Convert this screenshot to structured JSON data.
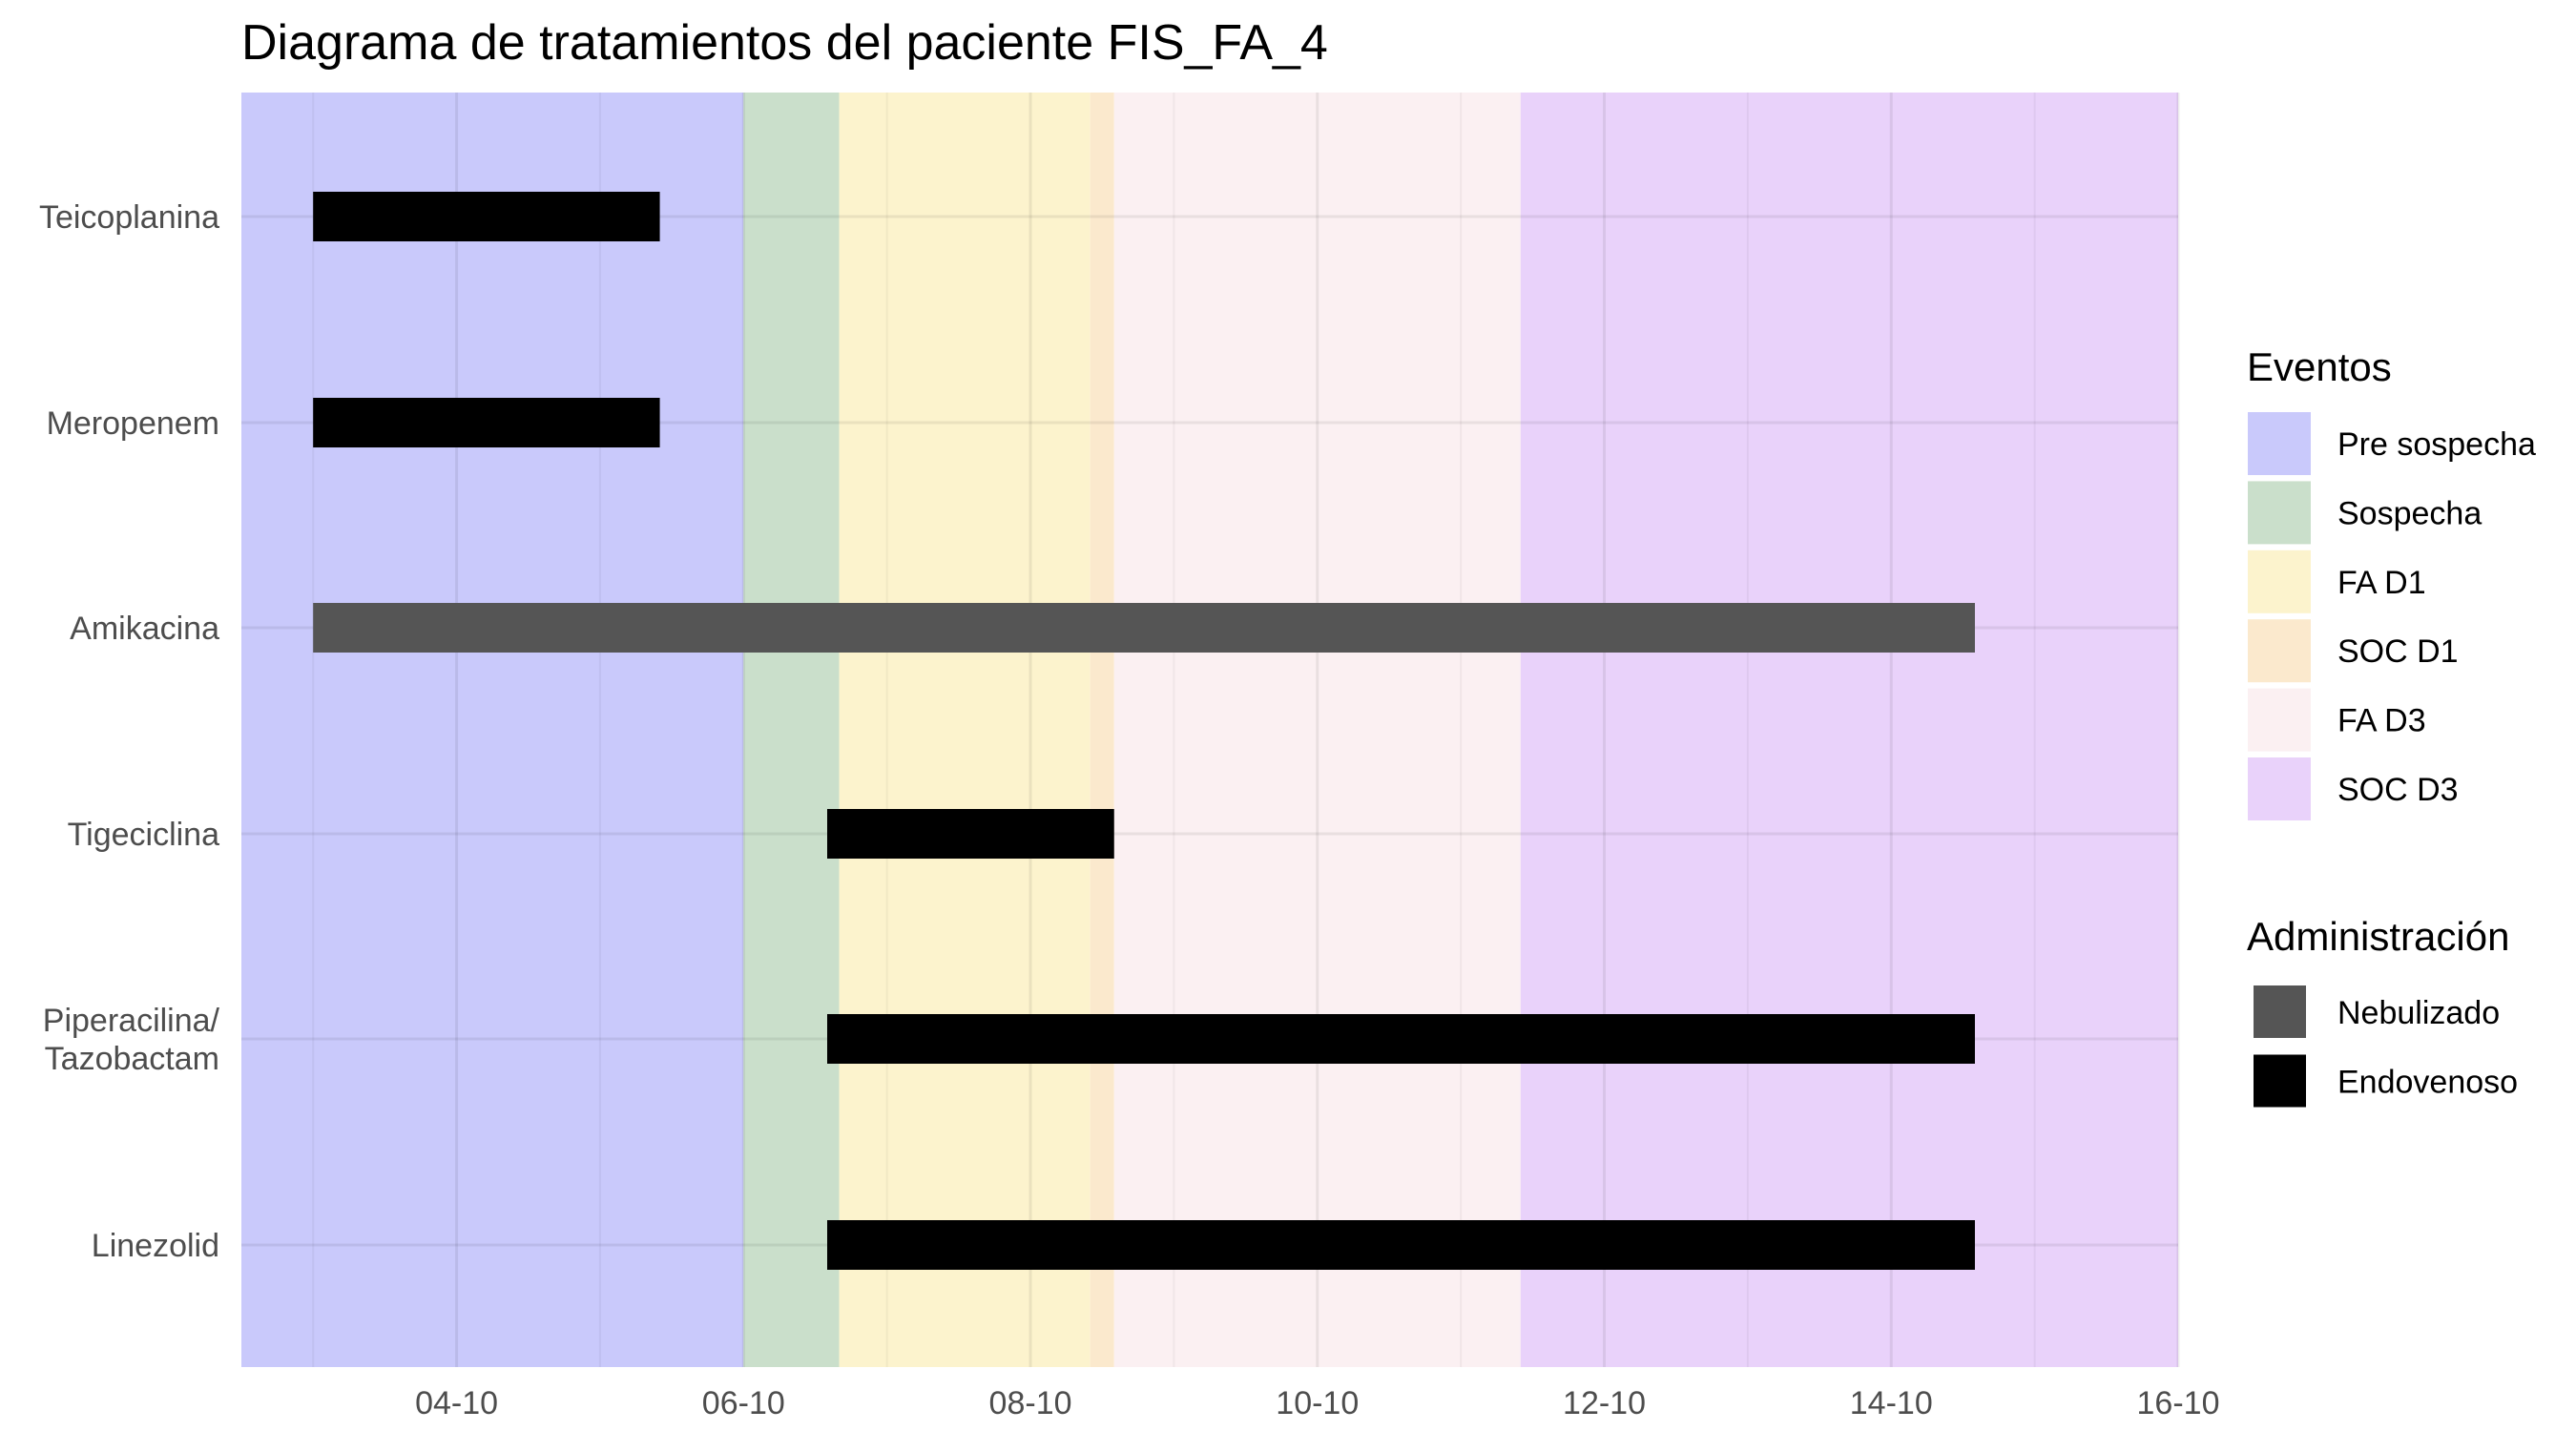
{
  "chart_data": {
    "type": "gantt",
    "title": "Diagrama de tratamientos del paciente FIS_FA_4",
    "xlabel": "",
    "ylabel": "",
    "x_ticks": [
      "04-10",
      "06-10",
      "08-10",
      "10-10",
      "12-10",
      "14-10",
      "16-10"
    ],
    "xlim": [
      "2023-10-02 12:00",
      "2023-10-16"
    ],
    "y_categories": [
      {
        "label": "Teicoplanina",
        "lines": [
          "Teicoplanina"
        ]
      },
      {
        "label": "Meropenem",
        "lines": [
          "Meropenem"
        ]
      },
      {
        "label": "Amikacina",
        "lines": [
          "Amikacina"
        ]
      },
      {
        "label": "Tigeciclina",
        "lines": [
          "Tigeciclina"
        ]
      },
      {
        "label": "Piperacilina/\nTazobactam",
        "lines": [
          "Piperacilina/",
          "Tazobactam"
        ]
      },
      {
        "label": "Linezolid",
        "lines": [
          "Linezolid"
        ]
      }
    ],
    "events": [
      {
        "name": "Pre sospecha",
        "start": "2023-10-02 12:00",
        "end": "2023-10-06 00:00",
        "color": "#c9c9fb"
      },
      {
        "name": "Sospecha",
        "start": "2023-10-06 00:00",
        "end": "2023-10-06 16:00",
        "color": "#cadfcb"
      },
      {
        "name": "FA D1",
        "start": "2023-10-06 16:00",
        "end": "2023-10-08 10:00",
        "color": "#fcf3cd"
      },
      {
        "name": "SOC D1",
        "start": "2023-10-08 10:00",
        "end": "2023-10-08 14:00",
        "color": "#fbe9cd"
      },
      {
        "name": "FA D3",
        "start": "2023-10-08 14:00",
        "end": "2023-10-11 10:00",
        "color": "#fbf0f2"
      },
      {
        "name": "SOC D3",
        "start": "2023-10-11 10:00",
        "end": "2023-10-16 00:00",
        "color": "#e9d2fa"
      }
    ],
    "administration": [
      {
        "name": "Nebulizado",
        "color": "#555555"
      },
      {
        "name": "Endovenoso",
        "color": "#000000"
      }
    ],
    "series": [
      {
        "drug": "Teicoplanina",
        "administration": "Endovenoso",
        "start": "2023-10-03 00:00",
        "end": "2023-10-05 10:00"
      },
      {
        "drug": "Meropenem",
        "administration": "Endovenoso",
        "start": "2023-10-03 00:00",
        "end": "2023-10-05 10:00"
      },
      {
        "drug": "Amikacina",
        "administration": "Nebulizado",
        "start": "2023-10-03 00:00",
        "end": "2023-10-14 14:00"
      },
      {
        "drug": "Tigeciclina",
        "administration": "Endovenoso",
        "start": "2023-10-06 14:00",
        "end": "2023-10-08 14:00"
      },
      {
        "drug": "Piperacilina/\nTazobactam",
        "administration": "Endovenoso",
        "start": "2023-10-06 14:00",
        "end": "2023-10-14 14:00"
      },
      {
        "drug": "Linezolid",
        "administration": "Endovenoso",
        "start": "2023-10-06 14:00",
        "end": "2023-10-14 14:00"
      }
    ],
    "grid": true,
    "legend_position": "right"
  },
  "legend": {
    "events_title": "Eventos",
    "administration_title": "Administración"
  }
}
